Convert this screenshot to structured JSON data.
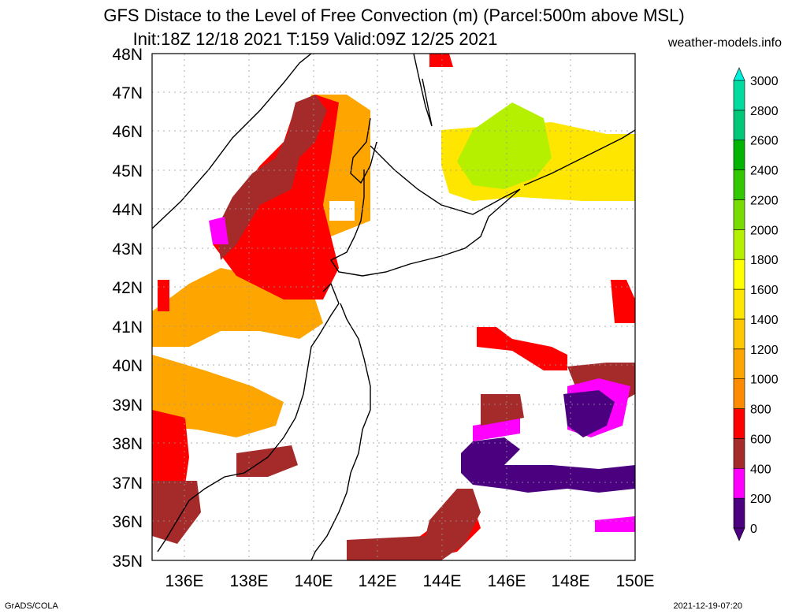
{
  "header": {
    "title_line1": "GFS Distace to the Level of Free Convection (m) (Parcel:500m above MSL)",
    "title_line2": "Init:18Z 12/18 2021 T:159 Valid:09Z 12/25 2021",
    "site": "weather-models.info"
  },
  "axes": {
    "lat_labels": [
      "35N",
      "36N",
      "37N",
      "38N",
      "39N",
      "40N",
      "41N",
      "42N",
      "43N",
      "44N",
      "45N",
      "46N",
      "47N",
      "48N"
    ],
    "lon_labels": [
      "136E",
      "138E",
      "140E",
      "142E",
      "144E",
      "146E",
      "148E",
      "150E"
    ]
  },
  "colorbar": {
    "labels": [
      "0",
      "200",
      "400",
      "600",
      "800",
      "1000",
      "1200",
      "1400",
      "1600",
      "1800",
      "2000",
      "2200",
      "2400",
      "2600",
      "2800",
      "3000"
    ],
    "colors": [
      "#4b0080",
      "#ff00ff",
      "#a52a2a",
      "#ff0000",
      "#ff8c00",
      "#ffa500",
      "#ffc800",
      "#ffe600",
      "#ffff00",
      "#b4f000",
      "#78dc00",
      "#32c800",
      "#00b400",
      "#00c878",
      "#00dca0",
      "#00f0dc"
    ]
  },
  "footer": {
    "left": "GrADS/COLA",
    "right": "2021-12-19-07:20"
  }
}
